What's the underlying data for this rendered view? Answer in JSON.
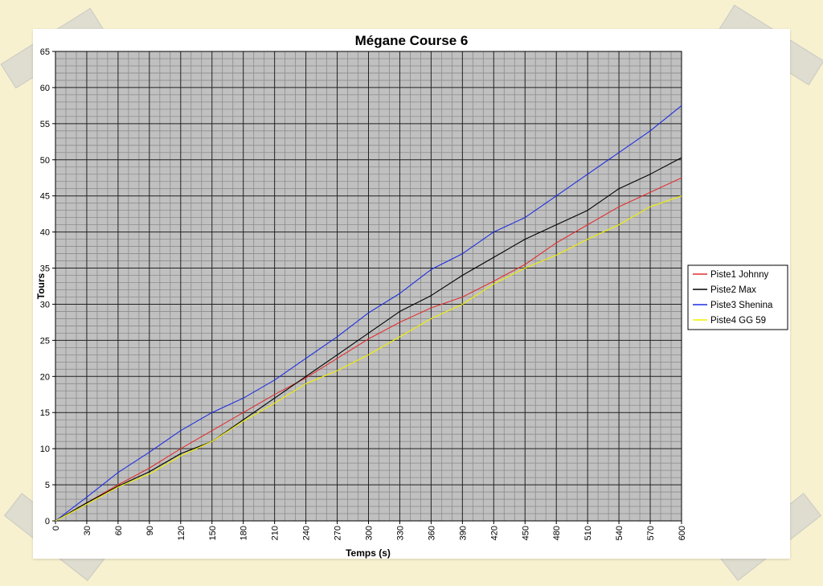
{
  "chart_data": {
    "type": "line",
    "title": "Mégane Course 6",
    "xlabel": "Temps (s)",
    "ylabel": "Tours",
    "xlim": [
      0,
      600
    ],
    "ylim": [
      0,
      65
    ],
    "x_ticks": [
      0,
      30,
      60,
      90,
      120,
      150,
      180,
      210,
      240,
      270,
      300,
      330,
      360,
      390,
      420,
      450,
      480,
      510,
      540,
      570,
      600
    ],
    "y_ticks": [
      0,
      5,
      10,
      15,
      20,
      25,
      30,
      35,
      40,
      45,
      50,
      55,
      60,
      65
    ],
    "grid": true,
    "legend_position": "right",
    "background_color": "#c0c0c0",
    "x": [
      0,
      30,
      60,
      90,
      120,
      150,
      180,
      210,
      240,
      270,
      300,
      330,
      360,
      390,
      420,
      450,
      480,
      510,
      540,
      570,
      600
    ],
    "series": [
      {
        "name": "Piste1 Johnny",
        "color": "#e03030",
        "values": [
          0,
          2.5,
          5,
          7.3,
          10,
          12.5,
          15,
          17.5,
          19.8,
          22.5,
          25.2,
          27.5,
          29.5,
          31,
          33.2,
          35.5,
          38.5,
          41,
          43.5,
          45.5,
          47.5
        ]
      },
      {
        "name": "Piste2 Max",
        "color": "#000000",
        "values": [
          0,
          2.5,
          4.8,
          6.8,
          9.3,
          11,
          14,
          17,
          20,
          23,
          26,
          29,
          31.2,
          34,
          36.5,
          39,
          41,
          43,
          46,
          48,
          50.3
        ]
      },
      {
        "name": "Piste3 Shenina",
        "color": "#1e2ee0",
        "values": [
          0,
          3.3,
          6.7,
          9.5,
          12.5,
          15,
          17,
          19.5,
          22.5,
          25.5,
          28.8,
          31.5,
          34.8,
          37,
          40,
          42,
          45,
          48,
          51,
          54,
          57.5
        ]
      },
      {
        "name": "Piste4 GG 59",
        "color": "#f0f000",
        "values": [
          0,
          2.3,
          4.7,
          6.5,
          9,
          11,
          13.8,
          16.3,
          19,
          20.8,
          23,
          25.5,
          28,
          30,
          32.8,
          35,
          36.8,
          39,
          41,
          43.5,
          45
        ]
      }
    ]
  }
}
